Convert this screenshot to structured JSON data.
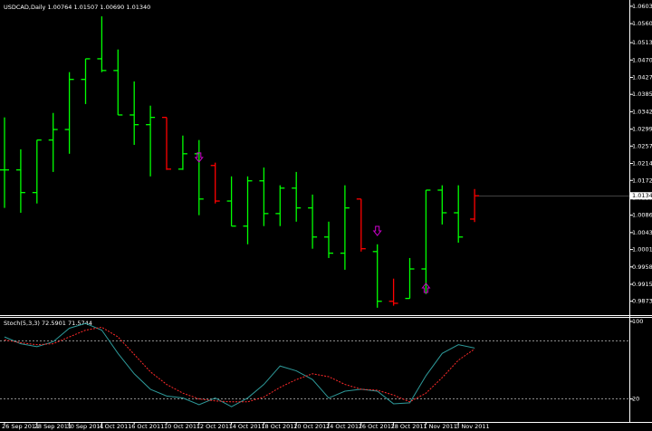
{
  "chart_data": [
    {
      "type": "ohlc",
      "title": "USDCAD,Daily",
      "header_labels": [
        "1.00764",
        "1.01507",
        "1.00690",
        "1.01340"
      ],
      "categories": [
        "26 Sep 2011",
        null,
        "28 Sep 2011",
        null,
        "30 Sep 2011",
        null,
        "4 Oct 2011",
        null,
        "6 Oct 2011",
        null,
        "10 Oct 2011",
        null,
        "12 Oct 2011",
        null,
        "14 Oct 2011",
        null,
        "18 Oct 2011",
        null,
        "20 Oct 2011",
        null,
        "24 Oct 2011",
        null,
        "26 Oct 2011",
        null,
        "28 Oct 2011",
        null,
        "1 Nov 2011",
        null,
        "3 Nov 2011",
        null
      ],
      "open": [
        1.0198,
        1.0198,
        1.0142,
        1.0272,
        1.0298,
        1.0422,
        1.0473,
        1.0444,
        1.0334,
        1.031,
        1.0328,
        1.02,
        1.0238,
        1.0209,
        1.0121,
        1.0059,
        1.0171,
        1.009,
        1.0153,
        1.0104,
        1.0032,
        0.9992,
        1.0126,
        0.9996,
        0.9873,
        0.988,
        0.9953,
        1.0148,
        1.0092,
        1.00764
      ],
      "high": [
        1.0328,
        1.0249,
        1.0272,
        1.0339,
        1.044,
        1.0473,
        1.0578,
        1.0496,
        1.0417,
        1.0357,
        1.0328,
        1.0283,
        1.0272,
        1.0216,
        1.0182,
        1.0182,
        1.0204,
        1.016,
        1.0193,
        1.0137,
        1.007,
        1.016,
        1.0126,
        1.0014,
        0.9929,
        0.998,
        1.0148,
        1.016,
        1.016,
        1.01507
      ],
      "low": [
        1.0104,
        1.0092,
        1.0115,
        1.0193,
        1.0238,
        1.0361,
        1.044,
        1.0334,
        1.026,
        1.0182,
        1.0198,
        1.0198,
        1.0086,
        1.0115,
        1.0059,
        1.0014,
        1.0059,
        1.0059,
        1.007,
        1.0003,
        0.998,
        0.9951,
        0.9996,
        0.9857,
        0.9862,
        0.988,
        0.9891,
        1.0063,
        1.0018,
        1.0069
      ],
      "close": [
        1.0198,
        1.0142,
        1.0272,
        1.0298,
        1.0422,
        1.0473,
        1.0444,
        1.0334,
        1.031,
        1.0328,
        1.02,
        1.0238,
        1.0126,
        1.0121,
        1.0059,
        1.0171,
        1.009,
        1.0153,
        1.0104,
        1.0032,
        0.9992,
        1.0104,
        1.0003,
        0.9873,
        0.9868,
        0.9953,
        1.0148,
        1.0092,
        1.0032,
        1.0134
      ],
      "bar_colors": [
        "#00ff00",
        "#00ff00",
        "#00ff00",
        "#00ff00",
        "#00ff00",
        "#00ff00",
        "#00ff00",
        "#00ff00",
        "#00ff00",
        "#00ff00",
        "#ff0000",
        "#00ff00",
        "#00ff00",
        "#ff0000",
        "#00ff00",
        "#00ff00",
        "#00ff00",
        "#00ff00",
        "#00ff00",
        "#00ff00",
        "#00ff00",
        "#00ff00",
        "#ff0000",
        "#00ff00",
        "#ff0000",
        "#00ff00",
        "#00ff00",
        "#00ff00",
        "#00ff00",
        "#ff0000"
      ],
      "arrows": [
        {
          "bar": 12,
          "price": 1.0229,
          "direction": "down"
        },
        {
          "bar": 23,
          "price": 1.0047,
          "direction": "down"
        },
        {
          "bar": 26,
          "price": 0.9906,
          "direction": "up"
        }
      ],
      "arrow_color": "#cc00cc",
      "ylim": [
        0.9841,
        1.0614
      ],
      "yticks": [
        {
          "value": 1.0603,
          "label": "1.06030"
        },
        {
          "value": 1.056,
          "label": "1.05600"
        },
        {
          "value": 1.0513,
          "label": "1.05130"
        },
        {
          "value": 1.047,
          "label": "1.04700"
        },
        {
          "value": 1.0427,
          "label": "1.04270"
        },
        {
          "value": 1.0385,
          "label": "1.03850"
        },
        {
          "value": 1.0342,
          "label": "1.03420"
        },
        {
          "value": 1.0299,
          "label": "1.02990"
        },
        {
          "value": 1.0257,
          "label": "1.02570"
        },
        {
          "value": 1.0214,
          "label": "1.02140"
        },
        {
          "value": 1.0172,
          "label": "1.01720"
        },
        {
          "value": 1.0129,
          "label": "1.01290"
        },
        {
          "value": 1.0086,
          "label": "1.00860"
        },
        {
          "value": 1.0043,
          "label": "1.00430"
        },
        {
          "value": 1.0001,
          "label": "1.00010"
        },
        {
          "value": 0.9958,
          "label": "0.99580"
        },
        {
          "value": 0.9915,
          "label": "0.99150"
        },
        {
          "value": 0.9873,
          "label": "0.98730"
        }
      ]
    },
    {
      "type": "line",
      "title": "Stoch(5,3,3)",
      "header_labels": [
        "72.5901",
        "71.5744"
      ],
      "series": [
        {
          "color": "#2e9a9a",
          "dash": false,
          "values": [
            84,
            77,
            74,
            79,
            93,
            98,
            91,
            67,
            46,
            30,
            23,
            21,
            14,
            21,
            12,
            21,
            35,
            54,
            49,
            40,
            21,
            28,
            30,
            28,
            15,
            16,
            44,
            67,
            76,
            72.5901
          ]
        },
        {
          "color": "#ff2a2a",
          "dash": true,
          "values": [
            81,
            78,
            76,
            77,
            84,
            91,
            94,
            84,
            66,
            48,
            35,
            26,
            20,
            18,
            17,
            17,
            22,
            32,
            40,
            46,
            43,
            35,
            30,
            29,
            24,
            17,
            26,
            42,
            60,
            71.5744
          ]
        }
      ],
      "ylim": [
        0,
        100
      ],
      "yticks": [
        100,
        20
      ],
      "levels": [
        80,
        20
      ]
    }
  ]
}
